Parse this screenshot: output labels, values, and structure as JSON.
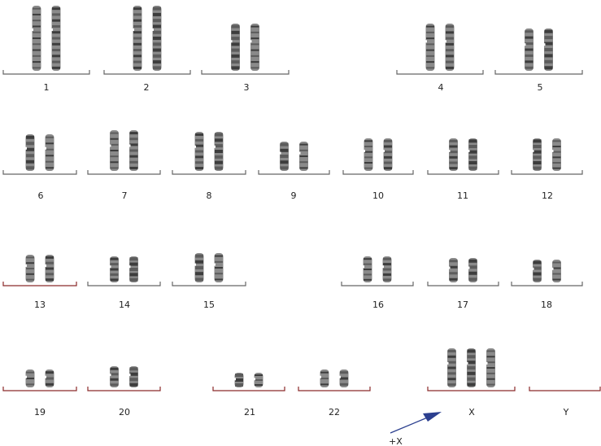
{
  "karyotype": {
    "chromosomes": [
      {
        "label": "1",
        "copies": 2
      },
      {
        "label": "2",
        "copies": 2
      },
      {
        "label": "3",
        "copies": 2
      },
      {
        "label": "4",
        "copies": 2
      },
      {
        "label": "5",
        "copies": 2
      },
      {
        "label": "6",
        "copies": 2
      },
      {
        "label": "7",
        "copies": 2
      },
      {
        "label": "8",
        "copies": 2
      },
      {
        "label": "9",
        "copies": 2
      },
      {
        "label": "10",
        "copies": 2
      },
      {
        "label": "11",
        "copies": 2
      },
      {
        "label": "12",
        "copies": 2
      },
      {
        "label": "13",
        "copies": 2
      },
      {
        "label": "14",
        "copies": 2
      },
      {
        "label": "15",
        "copies": 2
      },
      {
        "label": "16",
        "copies": 2
      },
      {
        "label": "17",
        "copies": 2
      },
      {
        "label": "18",
        "copies": 2
      },
      {
        "label": "19",
        "copies": 2
      },
      {
        "label": "20",
        "copies": 2
      },
      {
        "label": "21",
        "copies": 2
      },
      {
        "label": "22",
        "copies": 2
      },
      {
        "label": "X",
        "copies": 3
      },
      {
        "label": "Y",
        "copies": 0
      }
    ],
    "annotation": {
      "text": "+X",
      "arrow_color": "#2b3f8f"
    },
    "colors": {
      "chromosome": "#8a8a8a",
      "band_dark": "#3d3d3d",
      "baseline_gray": "#666666",
      "baseline_red": "#8b2a2a"
    }
  }
}
